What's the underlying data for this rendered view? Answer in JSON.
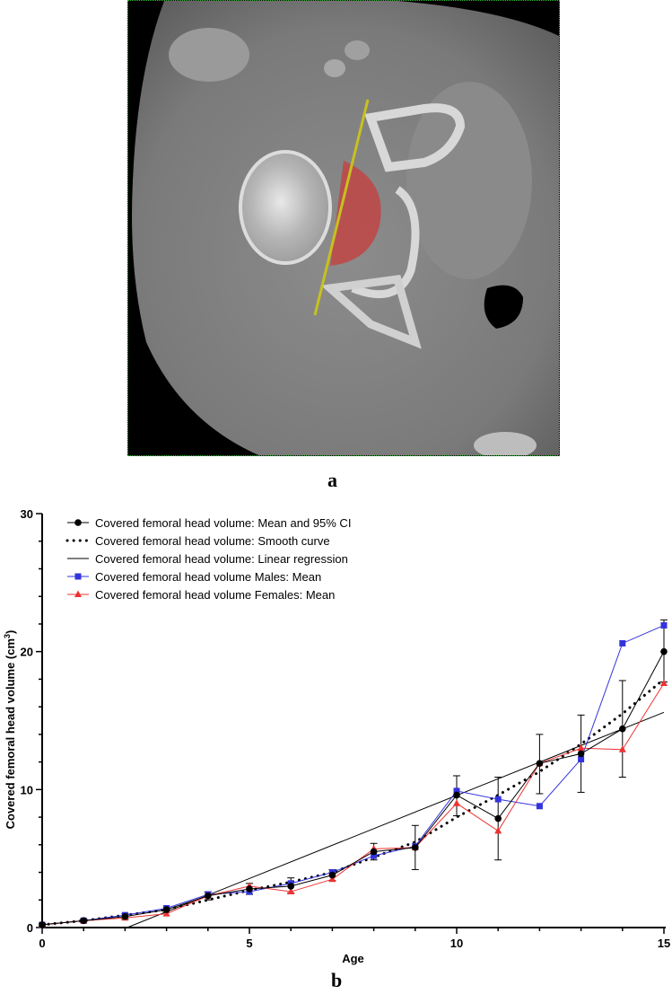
{
  "figure": {
    "panel_a_label": "a",
    "panel_b_label": "b"
  },
  "chart_data": {
    "type": "line",
    "xlabel": "Age",
    "ylabel": "Covered femoral head volume  (cm",
    "ylabel_superscript": "3",
    "ylabel_suffix": ")",
    "xlim": [
      0,
      15
    ],
    "ylim": [
      0,
      30
    ],
    "xticks": [
      0,
      5,
      10,
      15
    ],
    "yticks": [
      0,
      10,
      20,
      30
    ],
    "grid": false,
    "legend_position": "top-left",
    "series": [
      {
        "name": "Covered femoral head volume: Mean and 95% CI",
        "color": "#000000",
        "marker": "circle",
        "x": [
          0,
          1,
          2,
          3,
          4,
          5,
          6,
          7,
          8,
          9,
          10,
          11,
          12,
          13,
          14,
          15
        ],
        "y": [
          0.2,
          0.5,
          0.8,
          1.3,
          2.3,
          2.8,
          3.0,
          3.8,
          5.5,
          5.8,
          9.6,
          7.9,
          11.9,
          12.6,
          14.4,
          20.0
        ],
        "ci_low": [
          0.1,
          0.4,
          0.6,
          1.1,
          2.0,
          2.4,
          2.5,
          3.4,
          4.9,
          4.2,
          8.1,
          4.9,
          9.7,
          9.8,
          10.9,
          17.8
        ],
        "ci_high": [
          0.3,
          0.6,
          1.0,
          1.5,
          2.6,
          3.2,
          3.6,
          4.2,
          6.1,
          7.4,
          11.0,
          10.9,
          14.0,
          15.4,
          17.9,
          22.3
        ]
      },
      {
        "name": "Covered femoral head volume: Smooth curve",
        "color": "#000000",
        "style": "dotted",
        "x": [
          0,
          1,
          2,
          3,
          4,
          5,
          6,
          7,
          8,
          9,
          10,
          11,
          12,
          13,
          14,
          15
        ],
        "y": [
          0.2,
          0.5,
          0.9,
          1.3,
          2.0,
          2.7,
          3.3,
          4.0,
          5.1,
          6.2,
          8.0,
          9.6,
          11.3,
          13.3,
          15.5,
          18.0
        ]
      },
      {
        "name": "Covered femoral head volume: Linear regression",
        "color": "#000000",
        "style": "solid",
        "x": [
          2.05,
          15
        ],
        "y": [
          0,
          15.6
        ]
      },
      {
        "name": "Covered femoral head volume Males:  Mean",
        "color": "#3333dd",
        "marker": "square",
        "x": [
          0,
          1,
          2,
          3,
          4,
          5,
          6,
          7,
          8,
          9,
          10,
          11,
          12,
          13,
          14,
          15
        ],
        "y": [
          0.2,
          0.5,
          0.9,
          1.4,
          2.4,
          2.6,
          3.2,
          4.0,
          5.2,
          5.9,
          9.9,
          9.3,
          8.8,
          12.2,
          20.6,
          21.9
        ]
      },
      {
        "name": "Covered femoral head volume Females: Mean",
        "color": "#ee3333",
        "marker": "triangle",
        "x": [
          0,
          1,
          2,
          3,
          4,
          5,
          6,
          7,
          8,
          9,
          10,
          11,
          12,
          13,
          14,
          15
        ],
        "y": [
          0.2,
          0.5,
          0.7,
          1.0,
          2.3,
          3.0,
          2.6,
          3.5,
          5.7,
          5.8,
          9.0,
          7.0,
          11.9,
          13.0,
          12.9,
          17.7
        ]
      }
    ]
  }
}
